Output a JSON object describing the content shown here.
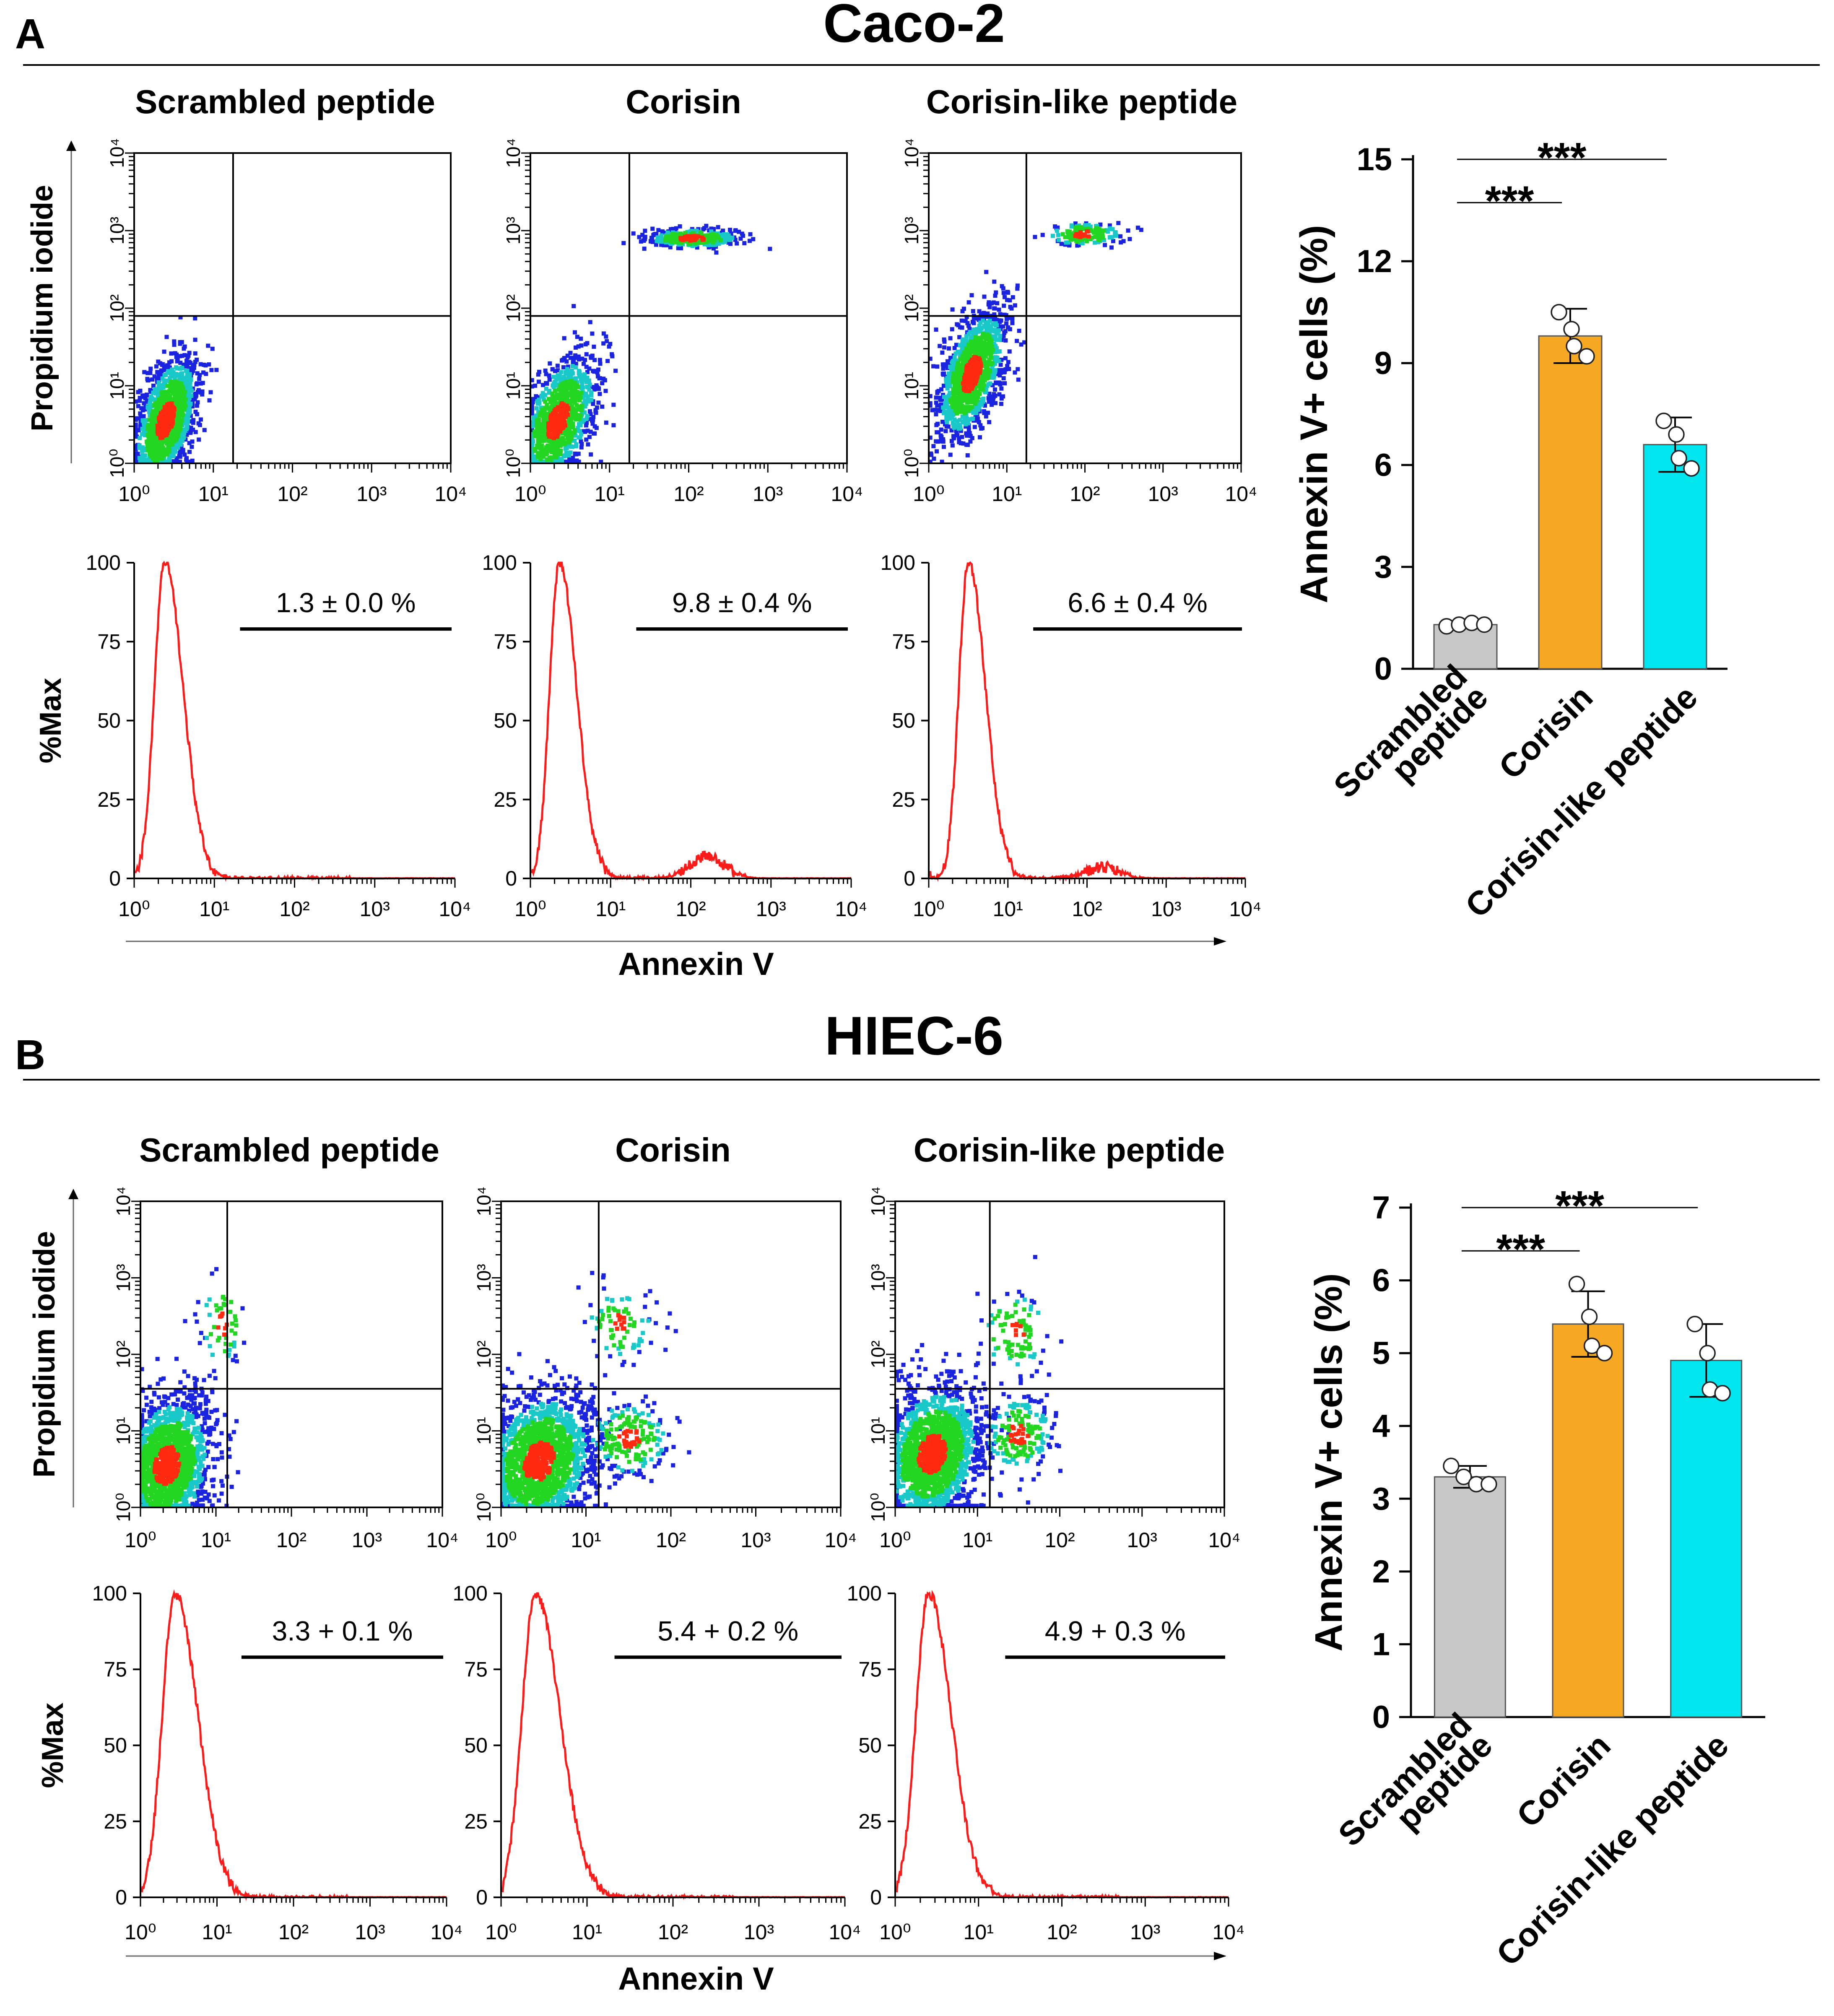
{
  "panels": [
    {
      "letter": "A",
      "cell_line": "Caco-2",
      "conditions": [
        "Scrambled peptide",
        "Corisin",
        "Corisin-like peptide"
      ],
      "histogram_percent_labels": [
        "1.3 ± 0.0 %",
        "9.8 ± 0.4 %",
        "6.6 ± 0.4 %"
      ],
      "dot_y_label": "Propidium iodide",
      "hist_y_label": "%Max",
      "x_label": "Annexin V",
      "log_ticks": [
        "10⁰",
        "10¹",
        "10²",
        "10³",
        "10⁴"
      ],
      "hist_y_ticks": [
        "0",
        "25",
        "50",
        "75",
        "100"
      ]
    },
    {
      "letter": "B",
      "cell_line": "HIEC-6",
      "conditions": [
        "Scrambled peptide",
        "Corisin",
        "Corisin-like peptide"
      ],
      "histogram_percent_labels": [
        "3.3 + 0.1 %",
        "5.4 + 0.2 %",
        "4.9 + 0.3 %"
      ],
      "dot_y_label": "Propidium iodide",
      "hist_y_label": "%Max",
      "x_label": "Annexin V",
      "log_ticks": [
        "10⁰",
        "10¹",
        "10²",
        "10³",
        "10⁴"
      ],
      "hist_y_ticks": [
        "0",
        "25",
        "50",
        "75",
        "100"
      ]
    }
  ],
  "colors": {
    "scrambled": "#c8c8c8",
    "corisin": "#f7a823",
    "corisin_like": "#00e5ee",
    "histogram_line": "#ff1a1a",
    "dot_low": "#1a24e0",
    "dot_mid": "#19c8c8",
    "dot_dense": "#22d622",
    "dot_core": "#ff2a10"
  },
  "chart_data": [
    {
      "type": "bar",
      "title": "Caco-2",
      "categories": [
        "Scrambled peptide",
        "Corisin",
        "Corisin-like peptide"
      ],
      "tick_labels": [
        [
          "Scrambled",
          "peptide"
        ],
        [
          "Corisin"
        ],
        [
          "Corisin-like peptide"
        ]
      ],
      "values": [
        1.3,
        9.8,
        6.6
      ],
      "errors": [
        0.1,
        0.8,
        0.8
      ],
      "points": [
        [
          1.25,
          1.3,
          1.35,
          1.3
        ],
        [
          10.5,
          10.0,
          9.5,
          9.2
        ],
        [
          7.3,
          6.9,
          6.2,
          5.9
        ]
      ],
      "ylabel": "Annexin V+ cells (%)",
      "xlabel": "",
      "ylim": [
        0,
        15
      ],
      "yticks": [
        0,
        3,
        6,
        9,
        12,
        15
      ],
      "significance": [
        {
          "from": 0,
          "to": 1,
          "label": "***"
        },
        {
          "from": 0,
          "to": 2,
          "label": "***"
        }
      ]
    },
    {
      "type": "bar",
      "title": "HIEC-6",
      "categories": [
        "Scrambled peptide",
        "Corisin",
        "Corisin-like peptide"
      ],
      "tick_labels": [
        [
          "Scrambled",
          "peptide"
        ],
        [
          "Corisin"
        ],
        [
          "Corisin-like peptide"
        ]
      ],
      "values": [
        3.3,
        5.4,
        4.9
      ],
      "errors": [
        0.15,
        0.45,
        0.5
      ],
      "points": [
        [
          3.45,
          3.3,
          3.2,
          3.2
        ],
        [
          5.95,
          5.5,
          5.1,
          5.0
        ],
        [
          5.4,
          5.0,
          4.5,
          4.45
        ]
      ],
      "ylabel": "Annexin V+ cells (%)",
      "xlabel": "",
      "ylim": [
        0,
        7
      ],
      "yticks": [
        0,
        1,
        2,
        3,
        4,
        5,
        6,
        7
      ],
      "significance": [
        {
          "from": 0,
          "to": 1,
          "label": "***"
        },
        {
          "from": 0,
          "to": 2,
          "label": "***"
        }
      ]
    }
  ]
}
